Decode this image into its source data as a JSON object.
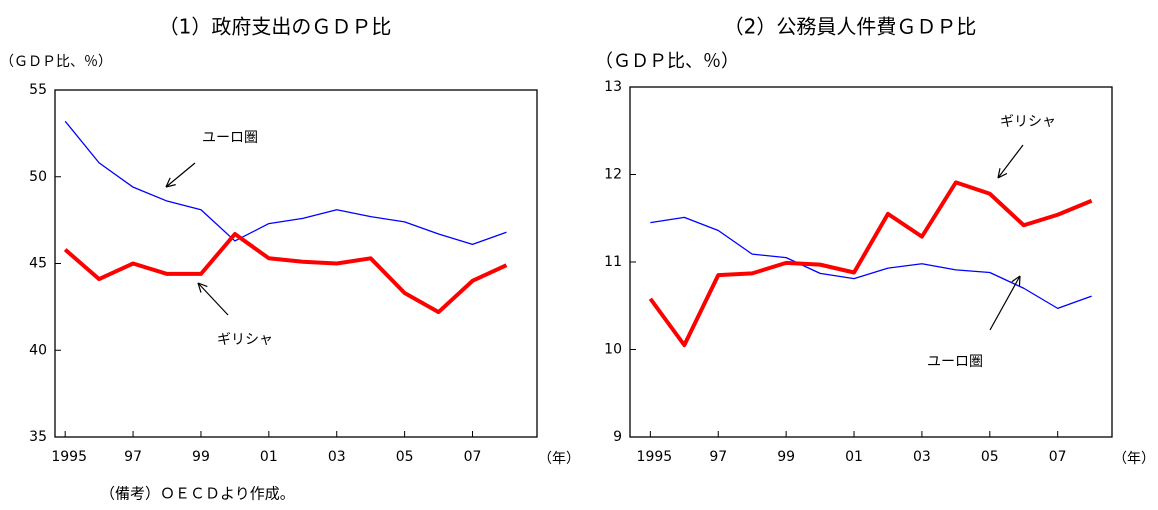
{
  "chart_data": [
    {
      "type": "line",
      "title": "（1）政府支出のＧＤＰ比",
      "ylabel": "（ＧＤＰ比、％）",
      "xlabel": "（年）",
      "x": [
        1995,
        1996,
        1997,
        1998,
        1999,
        2000,
        2001,
        2002,
        2003,
        2004,
        2005,
        2006,
        2007,
        2008
      ],
      "xlim": [
        1994.7,
        2008.9
      ],
      "xticks": [
        {
          "value": 1995,
          "label": "1995"
        },
        {
          "value": 1997,
          "label": "97"
        },
        {
          "value": 1999,
          "label": "99"
        },
        {
          "value": 2001,
          "label": "01"
        },
        {
          "value": 2003,
          "label": "03"
        },
        {
          "value": 2005,
          "label": "05"
        },
        {
          "value": 2007,
          "label": "07"
        }
      ],
      "ylim": [
        35,
        55
      ],
      "yticks": [
        35,
        40,
        45,
        50,
        55
      ],
      "series": [
        {
          "name": "ユーロ圏",
          "color": "#0000ff",
          "values": [
            53.2,
            50.8,
            49.4,
            48.6,
            48.1,
            46.3,
            47.3,
            47.6,
            48.1,
            47.7,
            47.4,
            46.7,
            46.1,
            46.8
          ]
        },
        {
          "name": "ギリシャ",
          "color": "#ff0000",
          "values": [
            45.8,
            44.1,
            45.0,
            44.4,
            44.4,
            46.7,
            45.3,
            45.1,
            45.0,
            45.3,
            43.3,
            42.2,
            44.0,
            44.9
          ]
        }
      ]
    },
    {
      "type": "line",
      "title": "（2）公務員人件費ＧＤＰ比",
      "ylabel": "（ＧＤＰ比、％）",
      "xlabel": "（年）",
      "x": [
        1995,
        1996,
        1997,
        1998,
        1999,
        2000,
        2001,
        2002,
        2003,
        2004,
        2005,
        2006,
        2007,
        2008
      ],
      "xlim": [
        1994.4,
        2008.6
      ],
      "xticks": [
        {
          "value": 1995,
          "label": "1995"
        },
        {
          "value": 1997,
          "label": "97"
        },
        {
          "value": 1999,
          "label": "99"
        },
        {
          "value": 2001,
          "label": "01"
        },
        {
          "value": 2003,
          "label": "03"
        },
        {
          "value": 2005,
          "label": "05"
        },
        {
          "value": 2007,
          "label": "07"
        }
      ],
      "ylim": [
        9,
        13
      ],
      "yticks": [
        9,
        10,
        11,
        12,
        13
      ],
      "series": [
        {
          "name": "ユーロ圏",
          "color": "#0000ff",
          "values": [
            11.45,
            11.51,
            11.36,
            11.09,
            11.05,
            10.87,
            10.81,
            10.93,
            10.98,
            10.91,
            10.88,
            10.7,
            10.47,
            10.61
          ]
        },
        {
          "name": "ギリシャ",
          "color": "#ff0000",
          "values": [
            10.58,
            10.05,
            10.85,
            10.87,
            10.99,
            10.97,
            10.88,
            11.55,
            11.29,
            11.91,
            11.78,
            11.42,
            11.54,
            11.7
          ]
        }
      ]
    }
  ],
  "note": "（備考）ＯＥＣＤより作成。"
}
